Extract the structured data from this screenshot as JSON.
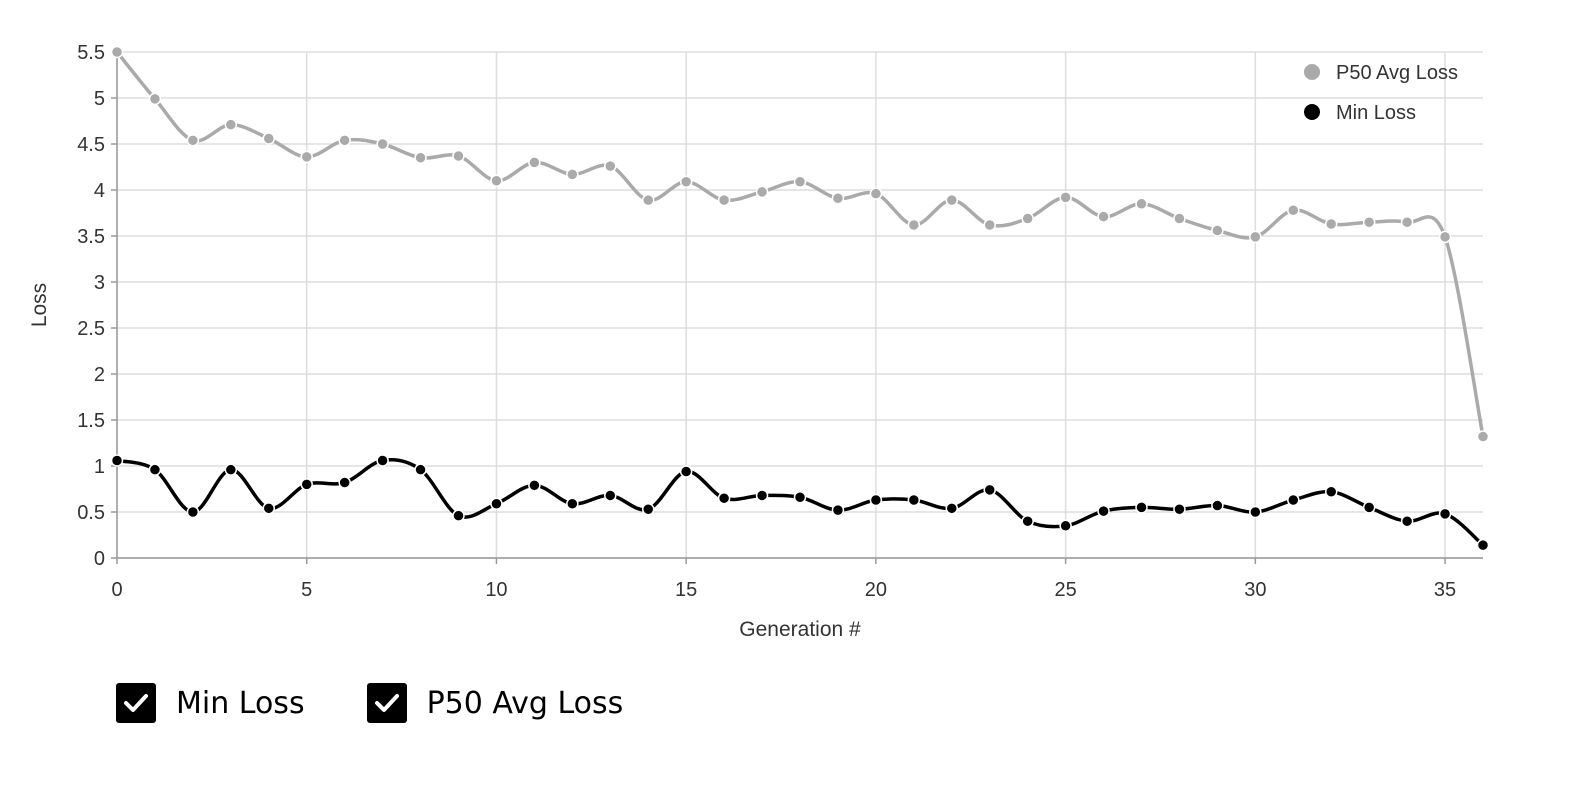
{
  "chart_data": {
    "type": "line",
    "xlabel": "Generation #",
    "ylabel": "Loss",
    "xlim": [
      0,
      36
    ],
    "ylim": [
      0,
      5.5
    ],
    "x_ticks": [
      0,
      5,
      10,
      15,
      20,
      25,
      30,
      35
    ],
    "y_ticks": [
      0,
      0.5,
      1,
      1.5,
      2,
      2.5,
      3,
      3.5,
      4,
      4.5,
      5,
      5.5
    ],
    "grid": true,
    "legend_position": "top-right",
    "x": [
      0,
      1,
      2,
      3,
      4,
      5,
      6,
      7,
      8,
      9,
      10,
      11,
      12,
      13,
      14,
      15,
      16,
      17,
      18,
      19,
      20,
      21,
      22,
      23,
      24,
      25,
      26,
      27,
      28,
      29,
      30,
      31,
      32,
      33,
      34,
      35,
      36
    ],
    "series": [
      {
        "name": "P50 Avg Loss",
        "color": "#aaaaaa",
        "values": [
          5.5,
          4.99,
          4.54,
          4.71,
          4.56,
          4.36,
          4.54,
          4.5,
          4.35,
          4.37,
          4.1,
          4.3,
          4.17,
          4.26,
          3.89,
          4.09,
          3.89,
          3.98,
          4.09,
          3.91,
          3.96,
          3.62,
          3.89,
          3.62,
          3.69,
          3.92,
          3.71,
          3.85,
          3.69,
          3.56,
          3.49,
          3.78,
          3.63,
          3.65,
          3.65,
          3.49,
          1.32
        ]
      },
      {
        "name": "Min Loss",
        "color": "#000000",
        "values": [
          1.06,
          0.96,
          0.5,
          0.96,
          0.54,
          0.8,
          0.82,
          1.06,
          0.96,
          0.46,
          0.59,
          0.79,
          0.59,
          0.68,
          0.53,
          0.94,
          0.65,
          0.68,
          0.66,
          0.52,
          0.63,
          0.63,
          0.54,
          0.74,
          0.4,
          0.35,
          0.51,
          0.55,
          0.53,
          0.57,
          0.5,
          0.63,
          0.72,
          0.55,
          0.4,
          0.48,
          0.14
        ]
      }
    ]
  },
  "controls": {
    "min_loss_label": "Min Loss",
    "p50_label": "P50 Avg Loss"
  }
}
